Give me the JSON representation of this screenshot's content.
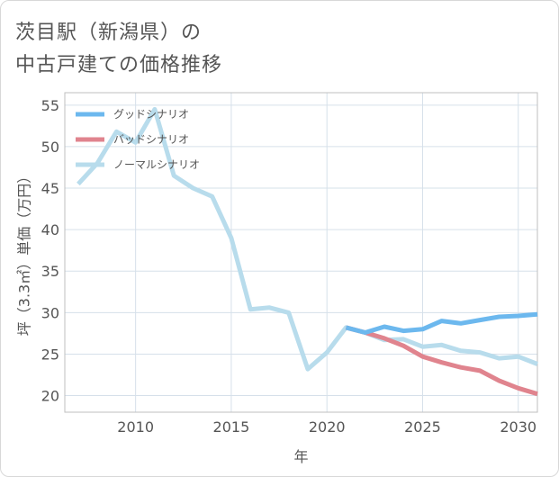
{
  "title": {
    "line1": "茨目駅（新潟県）の",
    "line2": "中古戸建ての価格推移"
  },
  "chart_data": {
    "type": "line",
    "title": "茨目駅（新潟県）の中古戸建ての価格推移",
    "xlabel": "年",
    "ylabel": "坪（3.3㎡）単価（万円）",
    "xlim": [
      2006.3,
      2031
    ],
    "ylim": [
      18,
      56.5
    ],
    "xticks": [
      2010,
      2015,
      2020,
      2025,
      2030
    ],
    "yticks": [
      20,
      25,
      30,
      35,
      40,
      45,
      50,
      55
    ],
    "grid": true,
    "legend_position": "top-left",
    "series": [
      {
        "name": "グッドシナリオ",
        "color": "#6cb8ee",
        "x": [
          2021,
          2022,
          2023,
          2024,
          2025,
          2026,
          2027,
          2028,
          2029,
          2030,
          2031
        ],
        "y": [
          28.2,
          27.6,
          28.3,
          27.8,
          28.0,
          29.0,
          28.7,
          29.1,
          29.5,
          29.6,
          29.8
        ]
      },
      {
        "name": "バッドシナリオ",
        "color": "#e0848e",
        "x": [
          2021,
          2022,
          2023,
          2024,
          2025,
          2026,
          2027,
          2028,
          2029,
          2030,
          2031
        ],
        "y": [
          28.2,
          27.6,
          26.9,
          26.0,
          24.7,
          24.0,
          23.4,
          23.0,
          21.8,
          20.9,
          20.2
        ]
      },
      {
        "name": "ノーマルシナリオ",
        "color": "#b8dcec",
        "x": [
          2007,
          2008,
          2009,
          2010,
          2011,
          2012,
          2013,
          2014,
          2015,
          2016,
          2017,
          2018,
          2019,
          2020,
          2021,
          2022,
          2023,
          2024,
          2025,
          2026,
          2027,
          2028,
          2029,
          2030,
          2031
        ],
        "y": [
          45.5,
          48.0,
          51.8,
          50.5,
          54.5,
          46.5,
          45.0,
          44.0,
          39.0,
          30.4,
          30.6,
          30.0,
          23.2,
          25.2,
          28.2,
          27.6,
          26.7,
          26.8,
          25.9,
          26.1,
          25.4,
          25.2,
          24.5,
          24.7,
          23.8
        ]
      }
    ]
  }
}
